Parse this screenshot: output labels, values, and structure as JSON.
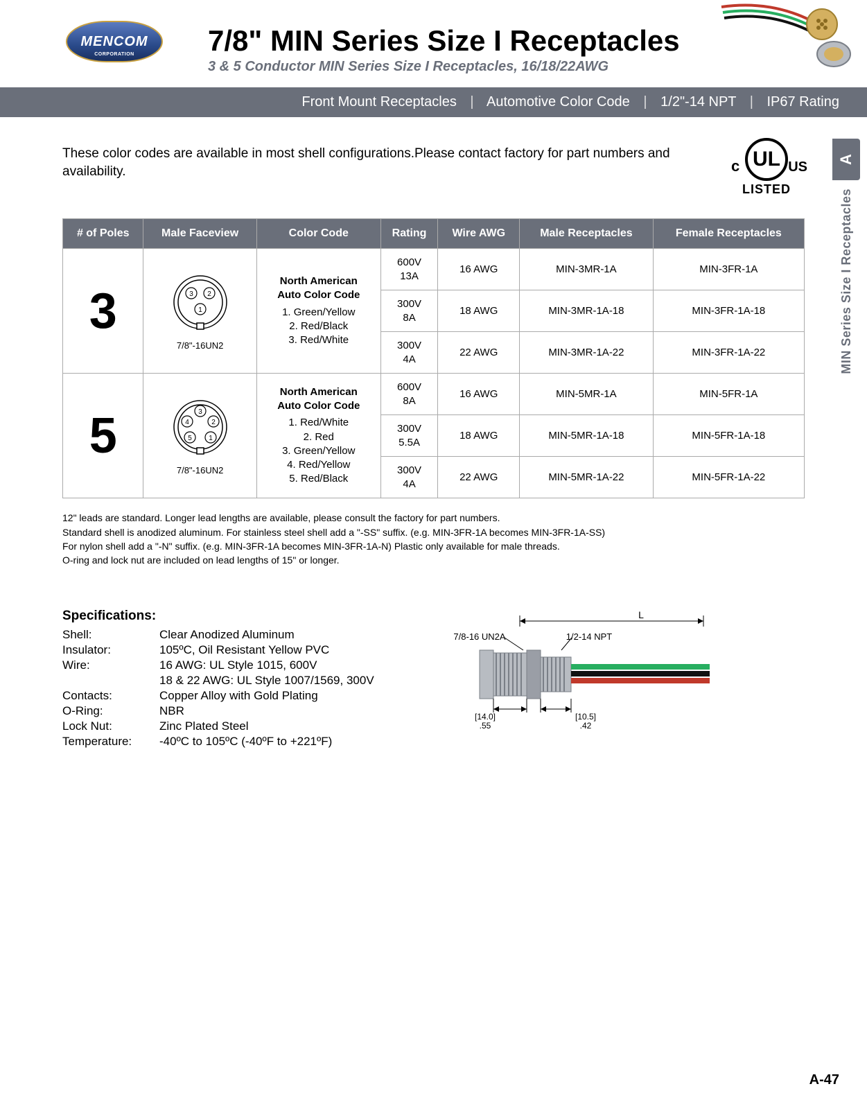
{
  "header": {
    "logo_text": "MENCOM",
    "logo_sub": "CORPORATION",
    "title": "7/8\" MIN Series Size I Receptacles",
    "subtitle": "3 & 5 Conductor MIN Series Size I Receptacles, 16/18/22AWG"
  },
  "grey_bar": {
    "items": [
      "Front Mount Receptacles",
      "Automotive Color Code",
      "1/2\"-14 NPT",
      "IP67 Rating"
    ]
  },
  "intro": "These color codes are available in most shell configurations.Please contact factory for part numbers and availability.",
  "ul": {
    "mark": "UL",
    "c": "c",
    "us": "US",
    "listed": "LISTED"
  },
  "table": {
    "headers": [
      "# of Poles",
      "Male Faceview",
      "Color Code",
      "Rating",
      "Wire AWG",
      "Male Receptacles",
      "Female Receptacles"
    ],
    "groups": [
      {
        "poles": "3",
        "face_label": "7/8\"-16UN2",
        "pins": [
          "3",
          "2",
          "1"
        ],
        "color_code": {
          "title": "North American\nAuto Color Code",
          "lines": [
            "1. Green/Yellow",
            "2. Red/Black",
            "3. Red/White"
          ]
        },
        "rows": [
          {
            "rating_v": "600V",
            "rating_a": "13A",
            "awg": "16 AWG",
            "male": "MIN-3MR-1A",
            "female": "MIN-3FR-1A"
          },
          {
            "rating_v": "300V",
            "rating_a": "8A",
            "awg": "18 AWG",
            "male": "MIN-3MR-1A-18",
            "female": "MIN-3FR-1A-18"
          },
          {
            "rating_v": "300V",
            "rating_a": "4A",
            "awg": "22 AWG",
            "male": "MIN-3MR-1A-22",
            "female": "MIN-3FR-1A-22"
          }
        ]
      },
      {
        "poles": "5",
        "face_label": "7/8\"-16UN2",
        "pins": [
          "3",
          "4",
          "2",
          "5",
          "1"
        ],
        "color_code": {
          "title": "North American\nAuto Color Code",
          "lines": [
            "1. Red/White",
            "2. Red",
            "3. Green/Yellow",
            "4. Red/Yellow",
            "5. Red/Black"
          ]
        },
        "rows": [
          {
            "rating_v": "600V",
            "rating_a": "8A",
            "awg": "16 AWG",
            "male": "MIN-5MR-1A",
            "female": "MIN-5FR-1A"
          },
          {
            "rating_v": "300V",
            "rating_a": "5.5A",
            "awg": "18 AWG",
            "male": "MIN-5MR-1A-18",
            "female": "MIN-5FR-1A-18"
          },
          {
            "rating_v": "300V",
            "rating_a": "4A",
            "awg": "22 AWG",
            "male": "MIN-5MR-1A-22",
            "female": "MIN-5FR-1A-22"
          }
        ]
      }
    ]
  },
  "notes": [
    "12\" leads are standard. Longer lead lengths are available, please consult the factory for part numbers.",
    "Standard shell is anodized aluminum. For stainless steel shell add a \"-SS\" suffix. (e.g. MIN-3FR-1A becomes MIN-3FR-1A-SS)",
    "For nylon shell add a \"-N\" suffix. (e.g. MIN-3FR-1A becomes MIN-3FR-1A-N) Plastic only available for male threads.",
    "O-ring and lock nut are included on lead lengths of 15\" or longer."
  ],
  "specs": {
    "heading": "Specifications:",
    "rows": [
      {
        "label": "Shell:",
        "value": "Clear Anodized Aluminum"
      },
      {
        "label": "Insulator:",
        "value": "105ºC, Oil Resistant Yellow PVC"
      },
      {
        "label": "Wire:",
        "value": "16 AWG: UL Style 1015, 600V"
      },
      {
        "label": "",
        "value": "18 & 22 AWG: UL Style 1007/1569, 300V"
      },
      {
        "label": "Contacts:",
        "value": "Copper Alloy with Gold Plating"
      },
      {
        "label": "O-Ring:",
        "value": "NBR"
      },
      {
        "label": "Lock Nut:",
        "value": "Zinc Plated Steel"
      },
      {
        "label": "Temperature:",
        "value": "-40ºC to 105ºC (-40ºF to +221ºF)"
      }
    ]
  },
  "diagram": {
    "thread1": "7/8-16 UN2A",
    "thread2": "1/2-14 NPT",
    "L": "L",
    "dim1_mm": "[14.0]",
    "dim1_in": ".55",
    "dim2_mm": "[10.5]",
    "dim2_in": ".42"
  },
  "side": {
    "tab": "A",
    "text": "MIN Series Size I Receptacles"
  },
  "page_number": "A-47",
  "colors": {
    "bar": "#6a6f7a",
    "wire_red": "#c0392b",
    "wire_green": "#27ae60",
    "wire_black": "#111111",
    "metal": "#b8bcc2",
    "metal_dark": "#7a7f87"
  }
}
